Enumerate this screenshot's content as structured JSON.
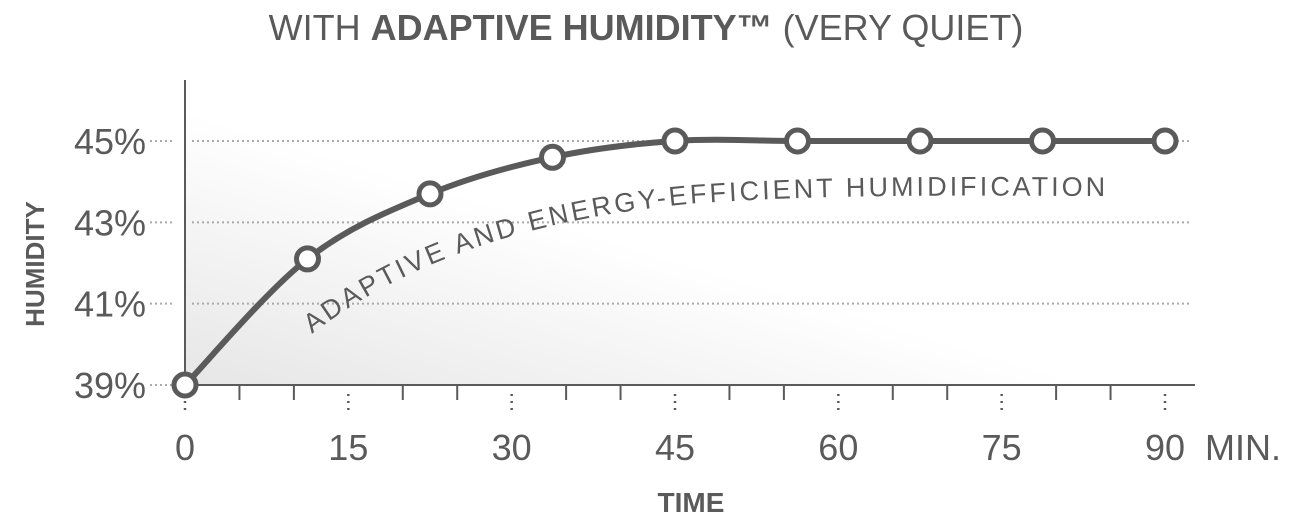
{
  "chart_data": {
    "type": "line",
    "title_prefix": "WITH ",
    "title_bold": "ADAPTIVE HUMIDITY™",
    "title_suffix": " (VERY QUIET)",
    "xlabel": "TIME",
    "ylabel": "HUMIDITY",
    "x_unit": "MIN.",
    "xlim": [
      0,
      90
    ],
    "ylim": [
      39,
      45
    ],
    "x_ticks": [
      "0",
      "15",
      "30",
      "45",
      "60",
      "75",
      "90"
    ],
    "x_tick_values": [
      0,
      15,
      30,
      45,
      60,
      75,
      90
    ],
    "y_ticks": [
      "39%",
      "41%",
      "43%",
      "45%"
    ],
    "y_tick_values": [
      39,
      41,
      43,
      45
    ],
    "grid": "horizontal dotted",
    "annotation": "ADAPTIVE AND ENERGY-EFFICIENT HUMIDIFICATION",
    "series": [
      {
        "x": [
          0,
          11.25,
          22.5,
          33.75,
          45,
          56.25,
          67.5,
          78.75,
          90
        ],
        "y": [
          39,
          42.1,
          43.7,
          44.6,
          45,
          45,
          45,
          45,
          45
        ]
      }
    ],
    "colors": {
      "line": "#5a5a5a",
      "marker_fill": "#ffffff",
      "grid": "#aaaaaa"
    }
  }
}
